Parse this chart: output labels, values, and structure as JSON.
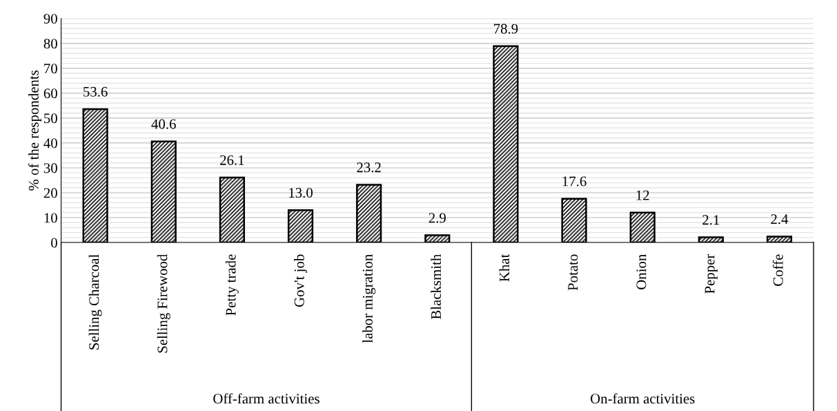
{
  "chart_data": {
    "type": "bar",
    "ylabel": "% of the respondents",
    "categories": [
      "Selling Charcoal",
      "Selling Firewood",
      "Petty trade",
      "Gov't job",
      "labor migration",
      "Blacksmith",
      "Khat",
      "Potato",
      "Onion",
      "Pepper",
      "Coffe"
    ],
    "values": [
      53.6,
      40.6,
      26.1,
      13.0,
      23.2,
      2.9,
      78.9,
      17.6,
      12,
      2.1,
      2.4
    ],
    "value_labels": [
      "53.6",
      "40.6",
      "26.1",
      "13.0",
      "23.2",
      "2.9",
      "78.9",
      "17.6",
      "12",
      "2.1",
      "2.4"
    ],
    "color": "#000000",
    "ylim": [
      0,
      90
    ],
    "yticks": [
      0,
      10,
      20,
      30,
      40,
      50,
      60,
      70,
      80,
      90
    ],
    "grid": "y",
    "annotations": [
      "Off-farm activities",
      "On-farm activities"
    ]
  }
}
